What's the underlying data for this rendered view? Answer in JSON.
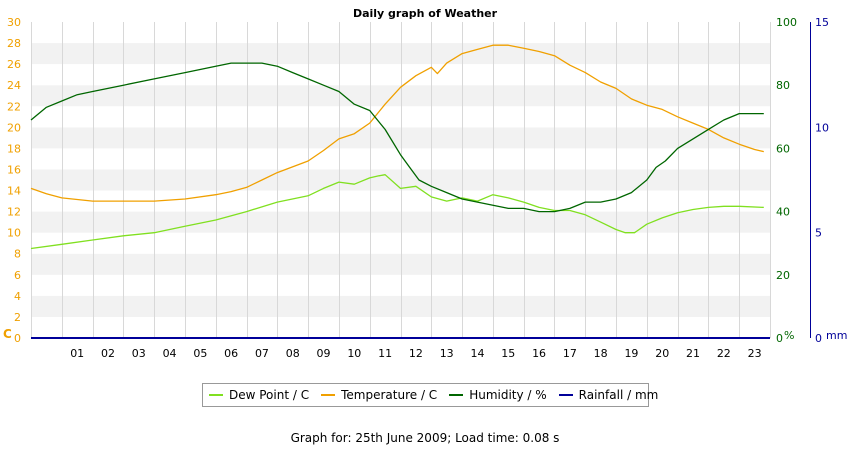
{
  "chart_data": {
    "type": "line",
    "title": "Daily graph of Weather",
    "x_ticks": [
      "01",
      "02",
      "03",
      "04",
      "05",
      "06",
      "07",
      "08",
      "09",
      "10",
      "11",
      "12",
      "13",
      "14",
      "15",
      "16",
      "17",
      "18",
      "19",
      "20",
      "21",
      "22",
      "23"
    ],
    "xlim": [
      0,
      24
    ],
    "left_axis": {
      "unit_label": "C",
      "ylim": [
        0,
        30
      ],
      "ticks": [
        0,
        2,
        4,
        6,
        8,
        10,
        12,
        14,
        16,
        18,
        20,
        22,
        24,
        26,
        28,
        30
      ],
      "color": "#f0a000"
    },
    "right_axis_1": {
      "unit_label": "%",
      "ylim": [
        0,
        100
      ],
      "ticks": [
        0,
        20,
        40,
        60,
        80,
        100
      ],
      "color": "#006600"
    },
    "right_axis_2": {
      "unit_label": "mm",
      "ylim": [
        0,
        15
      ],
      "ticks": [
        0,
        5,
        10,
        15
      ],
      "color": "#000099"
    },
    "series": [
      {
        "name": "Dew Point / C",
        "axis": "left",
        "color": "#80e020",
        "x": [
          0,
          1,
          2,
          3,
          4,
          5,
          6,
          7,
          8,
          9,
          9.5,
          10,
          10.5,
          11,
          11.3,
          11.5,
          12,
          12.5,
          13,
          13.5,
          14,
          14.5,
          15,
          15.5,
          16,
          16.5,
          17,
          17.5,
          18,
          18.5,
          19,
          19.3,
          19.6,
          20,
          20.5,
          21,
          21.5,
          22,
          22.5,
          23,
          23.8
        ],
        "y": [
          8.5,
          8.9,
          9.3,
          9.7,
          10.0,
          10.6,
          11.2,
          12.0,
          12.9,
          13.5,
          14.2,
          14.8,
          14.6,
          15.2,
          15.4,
          15.5,
          14.2,
          14.4,
          13.4,
          13.0,
          13.3,
          13.0,
          13.6,
          13.3,
          12.9,
          12.4,
          12.1,
          12.1,
          11.7,
          11.0,
          10.3,
          10.0,
          10.0,
          10.8,
          11.4,
          11.9,
          12.2,
          12.4,
          12.5,
          12.5,
          12.4
        ]
      },
      {
        "name": "Temperature / C",
        "axis": "left",
        "color": "#f0a000",
        "x": [
          0,
          0.5,
          1,
          2,
          3,
          4,
          5,
          6,
          6.5,
          7,
          7.5,
          8,
          9,
          9.5,
          10,
          10.5,
          11,
          11.5,
          12,
          12.5,
          13,
          13.2,
          13.5,
          14,
          14.5,
          15,
          15.5,
          16,
          16.5,
          17,
          17.5,
          18,
          18.5,
          19,
          19.5,
          20,
          20.5,
          21,
          21.5,
          22,
          22.5,
          23,
          23.5,
          23.8
        ],
        "y": [
          14.2,
          13.7,
          13.3,
          13.0,
          13.0,
          13.0,
          13.2,
          13.6,
          13.9,
          14.3,
          15.0,
          15.7,
          16.8,
          17.8,
          18.9,
          19.4,
          20.4,
          22.2,
          23.8,
          24.9,
          25.7,
          25.1,
          26.1,
          27.0,
          27.4,
          27.8,
          27.8,
          27.5,
          27.2,
          26.8,
          25.9,
          25.2,
          24.3,
          23.7,
          22.7,
          22.1,
          21.7,
          21.0,
          20.4,
          19.8,
          19.0,
          18.4,
          17.9,
          17.7
        ]
      },
      {
        "name": "Humidity / %",
        "axis": "right1",
        "color": "#006600",
        "x": [
          0,
          0.5,
          1,
          1.5,
          2,
          3,
          4,
          5,
          6,
          6.5,
          7,
          7.5,
          8,
          8.5,
          9,
          9.5,
          10,
          10.5,
          11,
          11.5,
          12,
          12.3,
          12.6,
          13,
          13.5,
          14,
          14.5,
          15,
          15.5,
          16,
          16.5,
          17,
          17.5,
          18,
          18.5,
          19,
          19.5,
          20,
          20.3,
          20.6,
          21,
          21.5,
          22,
          22.5,
          23,
          23.8
        ],
        "y": [
          69,
          73,
          75,
          77,
          78,
          80,
          82,
          84,
          86,
          87,
          87,
          87,
          86,
          84,
          82,
          80,
          78,
          74,
          72,
          66,
          58,
          54,
          50,
          48,
          46,
          44,
          43,
          42,
          41,
          41,
          40,
          40,
          41,
          43,
          43,
          44,
          46,
          50,
          54,
          56,
          60,
          63,
          66,
          69,
          71,
          71
        ]
      },
      {
        "name": "Rainfall / mm",
        "axis": "right2",
        "color": "#000099",
        "x": [
          0,
          24
        ],
        "y": [
          0,
          0
        ]
      }
    ],
    "grid": true
  },
  "legend": {
    "items": [
      {
        "label": "Dew Point / C",
        "color": "#80e020"
      },
      {
        "label": "Temperature / C",
        "color": "#f0a000"
      },
      {
        "label": "Humidity / %",
        "color": "#006600"
      },
      {
        "label": "Rainfall / mm",
        "color": "#000099"
      }
    ]
  },
  "footer": {
    "text": "Graph for: 25th June 2009; Load time: 0.08 s"
  }
}
